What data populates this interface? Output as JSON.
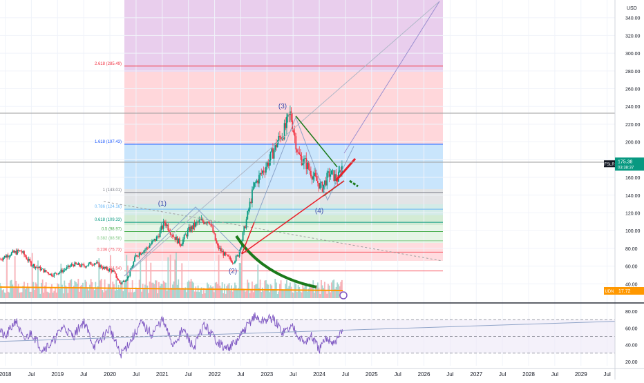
{
  "currency_label": "USD",
  "chart_data": [
    {
      "type": "line",
      "panel": "price",
      "ylim": [
        20,
        360
      ],
      "y_ticks": [
        40,
        60,
        80,
        100,
        120,
        140,
        160,
        180,
        200,
        220,
        240,
        260,
        280,
        300,
        320,
        340
      ],
      "y_tick_labels": [
        "40.00",
        "60.00",
        "80.00",
        "100.00",
        "120.00",
        "140.00",
        "160.00",
        "180.00",
        "200.00",
        "220.00",
        "240.00",
        "260.00",
        "280.00",
        "300.00",
        "320.00",
        "340.00"
      ],
      "grid": true,
      "candles_summary": {
        "x": [
          2017.9,
          2018.1,
          2018.3,
          2018.5,
          2018.7,
          2018.9,
          2019.1,
          2019.3,
          2019.5,
          2019.7,
          2019.9,
          2020.05,
          2020.2,
          2020.35,
          2020.5,
          2020.7,
          2020.9,
          2021.05,
          2021.2,
          2021.35,
          2021.5,
          2021.7,
          2021.9,
          2022.05,
          2022.2,
          2022.35,
          2022.45,
          2022.6,
          2022.75,
          2022.9,
          2023.05,
          2023.2,
          2023.35,
          2023.45,
          2023.6,
          2023.75,
          2023.9,
          2024.05,
          2024.2,
          2024.35,
          2024.45
        ],
        "close": [
          68,
          74,
          77,
          62,
          56,
          50,
          55,
          62,
          60,
          64,
          57,
          55,
          40,
          48,
          72,
          80,
          92,
          110,
          95,
          85,
          100,
          110,
          112,
          82,
          72,
          65,
          72,
          110,
          150,
          165,
          180,
          200,
          215,
          232,
          185,
          175,
          160,
          148,
          165,
          158,
          175
        ]
      },
      "fib_levels": [
        {
          "label": "0 (54.54)",
          "value": 54.54,
          "color": "#f7525f"
        },
        {
          "label": "0.236 (75.73)",
          "value": 75.73,
          "color": "#f7525f"
        },
        {
          "label": "0.382 (88.58)",
          "value": 88.58,
          "color": "#81c784"
        },
        {
          "label": "0.5 (98.97)",
          "value": 98.97,
          "color": "#4caf50"
        },
        {
          "label": "0.618 (109.33)",
          "value": 109.33,
          "color": "#089981"
        },
        {
          "label": "0.786 (124.16)",
          "value": 124.16,
          "color": "#64b5f6"
        },
        {
          "label": "1 (143.01)",
          "value": 143.01,
          "color": "#787b86"
        },
        {
          "label": "1.618 (197.43)",
          "value": 197.43,
          "color": "#2962ff"
        },
        {
          "label": "2.618 (285.49)",
          "value": 285.49,
          "color": "#f23645"
        }
      ],
      "wave_labels": [
        {
          "text": "(1)",
          "x": 2021.0,
          "y": 128
        },
        {
          "text": "(2)",
          "x": 2022.35,
          "y": 52
        },
        {
          "text": "(3)",
          "x": 2023.3,
          "y": 238
        },
        {
          "text": "(4)",
          "x": 2024.0,
          "y": 120
        }
      ],
      "price_badge": {
        "label": "FSLR",
        "value": "175.38",
        "countdown": "03:38:37",
        "color": "#089981"
      },
      "volume_badge": {
        "label": "UDN",
        "value": "17.72",
        "color": "#ff9800"
      }
    },
    {
      "type": "line",
      "panel": "rsi",
      "ylim": [
        15,
        85
      ],
      "y_ticks": [
        20,
        40,
        60,
        80
      ],
      "y_tick_labels": [
        "20.00",
        "40.00",
        "60.00",
        "80.00"
      ],
      "bands": [
        30,
        50,
        70
      ],
      "x": [
        2017.85,
        2018.0,
        2018.2,
        2018.35,
        2018.5,
        2018.7,
        2018.9,
        2019.1,
        2019.3,
        2019.5,
        2019.7,
        2019.85,
        2020.0,
        2020.2,
        2020.4,
        2020.6,
        2020.8,
        2021.0,
        2021.2,
        2021.4,
        2021.6,
        2021.8,
        2022.0,
        2022.2,
        2022.4,
        2022.6,
        2022.75,
        2022.9,
        2023.1,
        2023.3,
        2023.5,
        2023.7,
        2023.85,
        2024.0,
        2024.15,
        2024.3,
        2024.45
      ],
      "values": [
        62,
        48,
        70,
        45,
        55,
        35,
        42,
        62,
        50,
        68,
        38,
        48,
        60,
        28,
        45,
        66,
        52,
        70,
        40,
        58,
        36,
        64,
        48,
        35,
        42,
        60,
        74,
        68,
        72,
        55,
        62,
        42,
        50,
        34,
        48,
        42,
        58
      ]
    }
  ],
  "x_axis": {
    "ticks": [
      2018,
      2018.5,
      2019,
      2019.5,
      2020,
      2020.5,
      2021,
      2021.5,
      2022,
      2022.5,
      2023,
      2023.5,
      2024,
      2024.5,
      2025,
      2025.5,
      2026,
      2026.5,
      2027,
      2027.5,
      2028,
      2028.5,
      2029,
      2029.5
    ],
    "labels": [
      "2018",
      "Jul",
      "2019",
      "Jul",
      "2020",
      "Jul",
      "2021",
      "Jul",
      "2022",
      "Jul",
      "2023",
      "Jul",
      "2024",
      "Jul",
      "2025",
      "Jul",
      "2026",
      "Jul",
      "2027",
      "Jul",
      "2028",
      "Jul",
      "2029",
      "Jul"
    ],
    "range": [
      2017.9,
      2029.65
    ]
  },
  "colors": {
    "up": "#089981",
    "down": "#f23645",
    "rsi": "#7e57c2",
    "volume_ma": "#ff9800",
    "trend_green": "#1b7a1b",
    "trend_red": "#e8202a"
  }
}
